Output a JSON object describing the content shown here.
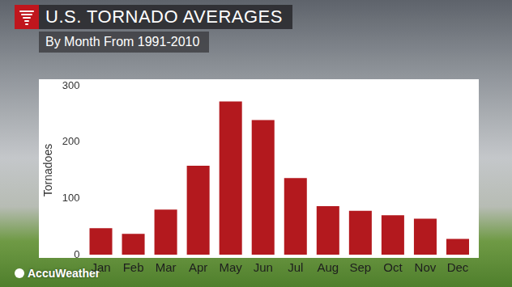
{
  "chart_data": {
    "type": "bar",
    "title": "U.S. TORNADO AVERAGES",
    "subtitle": "By Month From 1991-2010",
    "y_label": "Tornadoes",
    "source": "AccuWeather",
    "categories": [
      "Jan",
      "Feb",
      "Mar",
      "Apr",
      "May",
      "Jun",
      "Jul",
      "Aug",
      "Sep",
      "Oct",
      "Nov",
      "Dec"
    ],
    "values": [
      47,
      37,
      80,
      158,
      272,
      239,
      136,
      86,
      78,
      70,
      64,
      28
    ],
    "color": "#b3191e",
    "ylim": [
      0,
      300
    ],
    "yticks": [
      0,
      100,
      200,
      300
    ],
    "grid": false
  }
}
